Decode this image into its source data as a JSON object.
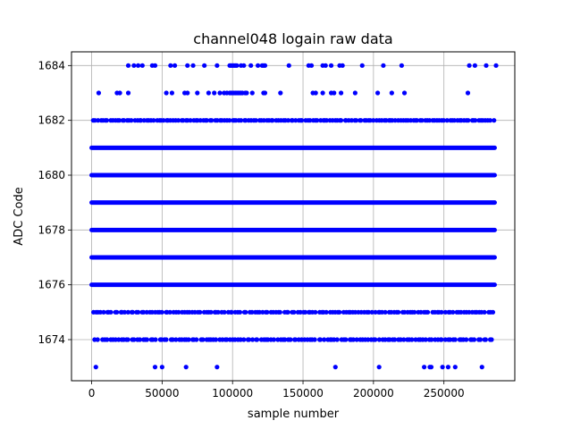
{
  "chart_data": {
    "type": "scatter",
    "title": "channel048 logain raw data",
    "xlabel": "sample number",
    "ylabel": "ADC Code",
    "xlim": [
      -14300,
      300300
    ],
    "ylim": [
      1672.5,
      1684.5
    ],
    "xticks": [
      0,
      50000,
      100000,
      150000,
      200000,
      250000
    ],
    "xtick_labels": [
      "0",
      "50000",
      "100000",
      "150000",
      "200000",
      "250000"
    ],
    "yticks": [
      1674,
      1676,
      1678,
      1680,
      1682,
      1684
    ],
    "ytick_labels": [
      "1674",
      "1676",
      "1678",
      "1680",
      "1682",
      "1684"
    ],
    "grid": true,
    "marker_color": "#0000ff",
    "dense_levels": [
      {
        "y": 1676,
        "x_range": [
          0,
          286000
        ]
      },
      {
        "y": 1677,
        "x_range": [
          0,
          286000
        ]
      },
      {
        "y": 1678,
        "x_range": [
          0,
          286000
        ]
      },
      {
        "y": 1679,
        "x_range": [
          0,
          286000
        ]
      },
      {
        "y": 1680,
        "x_range": [
          0,
          286000
        ]
      },
      {
        "y": 1681,
        "x_range": [
          0,
          286000
        ]
      }
    ],
    "sparse_points": [
      {
        "y": 1684,
        "x": [
          26000,
          30000,
          33000,
          36000,
          43000,
          45000,
          56000,
          59000,
          68000,
          72000,
          80000,
          89000,
          98000,
          99000,
          100000,
          101000,
          102000,
          103000,
          106000,
          108000,
          113000,
          118000,
          121000,
          122000,
          123000,
          140000,
          154000,
          156000,
          164000,
          166000,
          170000,
          176000,
          178000,
          192000,
          207000,
          220000,
          268000,
          272000,
          280000,
          287000
        ]
      },
      {
        "y": 1683,
        "x": [
          5000,
          18000,
          20000,
          26000,
          53000,
          57000,
          66000,
          68000,
          75000,
          83000,
          87000,
          91000,
          94000,
          96000,
          98000,
          99000,
          100000,
          101000,
          102000,
          103000,
          104000,
          105000,
          106000,
          107000,
          109000,
          110000,
          114000,
          122000,
          123000,
          134000,
          157000,
          159000,
          164000,
          170000,
          172000,
          177000,
          187000,
          203000,
          213000,
          222000,
          267000
        ]
      },
      {
        "y": 1682,
        "x_range": [
          0,
          286000
        ],
        "count": 165
      },
      {
        "y": 1675,
        "x_range": [
          0,
          286000
        ],
        "count": 150
      },
      {
        "y": 1674,
        "x_range": [
          2000,
          285000
        ],
        "count": 145
      },
      {
        "y": 1673,
        "x": [
          3000,
          45000,
          50000,
          67000,
          89000,
          173000,
          204000,
          236000,
          240000,
          241000,
          249000,
          253000,
          258000,
          277000
        ]
      }
    ]
  }
}
